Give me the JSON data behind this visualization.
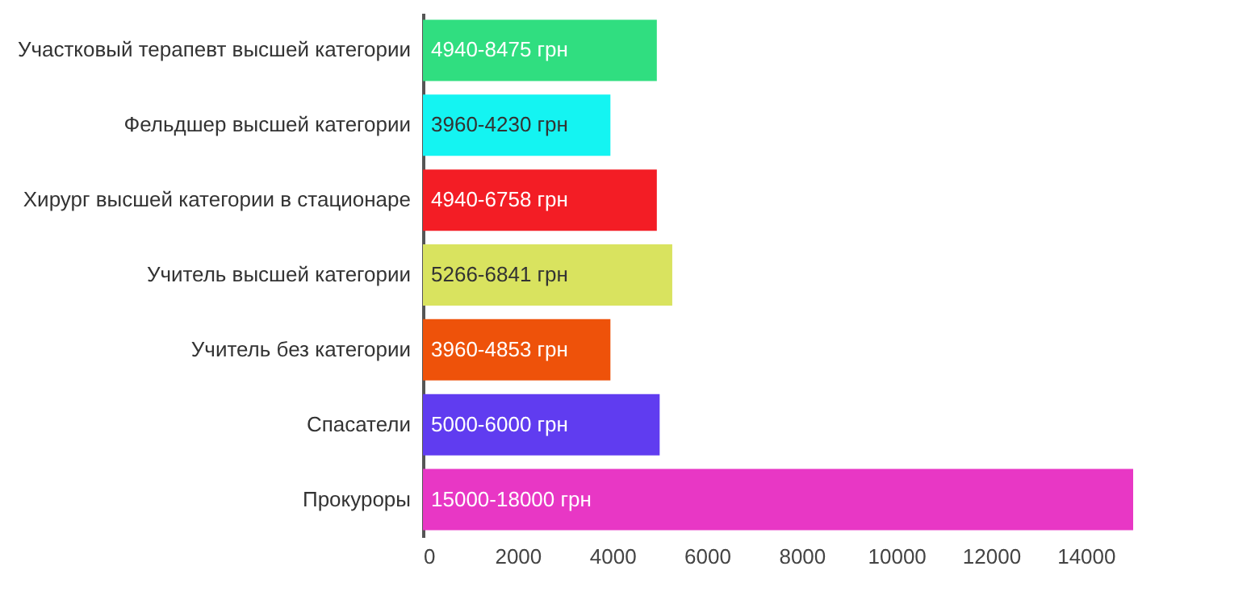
{
  "chart_data": {
    "type": "bar",
    "orientation": "horizontal",
    "categories": [
      "Участковый терапевт высшей категории",
      "Фельдшер высшей категории",
      "Хирург высшей категории в стационаре",
      "Учитель высшей категории",
      "Учитель без категории",
      "Спасатели",
      "Прокуроры"
    ],
    "values": [
      4940,
      3960,
      4940,
      5266,
      3960,
      5000,
      15000
    ],
    "colors": [
      "#30de80",
      "#14f4f2",
      "#f31d25",
      "#d9e35f",
      "#ee520a",
      "#603cf0",
      "#e837c5"
    ],
    "value_labels": [
      "4940-8475 грн",
      "3960-4230 грн",
      "4940-6758 грн",
      "5266-6841 грн",
      "3960-4853 грн",
      "5000-6000 грн",
      "15000-18000 грн"
    ],
    "xlim": [
      0,
      15000
    ],
    "xticks": [
      0,
      2000,
      4000,
      6000,
      8000,
      10000,
      12000,
      14000
    ],
    "grid": false,
    "legend": false
  }
}
